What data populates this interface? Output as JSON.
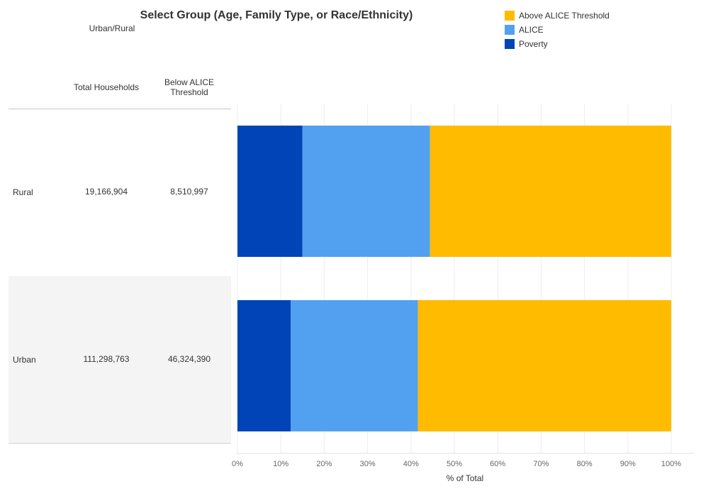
{
  "header": {
    "title": "Select Group (Age, Family Type, or Race/Ethnicity)",
    "dimension_label": "Urban/Rural",
    "columns": {
      "total_households": "Total Households",
      "below_alice": "Below ALICE Threshold"
    }
  },
  "legend": {
    "items": [
      {
        "label": "Above ALICE Threshold",
        "color": "#ffbb00"
      },
      {
        "label": "ALICE",
        "color": "#52a1f0"
      },
      {
        "label": "Poverty",
        "color": "#0044b8"
      }
    ]
  },
  "table": {
    "rows": [
      {
        "label": "Rural",
        "total": "19,166,904",
        "below": "8,510,997"
      },
      {
        "label": "Urban",
        "total": "111,298,763",
        "below": "46,324,390"
      }
    ]
  },
  "chart_data": {
    "type": "bar",
    "orientation": "horizontal",
    "stacked": true,
    "categories": [
      "Rural",
      "Urban"
    ],
    "series": [
      {
        "name": "Poverty",
        "values": [
          15.0,
          12.3
        ],
        "color": "#0044b8"
      },
      {
        "name": "ALICE",
        "values": [
          29.4,
          29.3
        ],
        "color": "#52a1f0"
      },
      {
        "name": "Above ALICE Threshold",
        "values": [
          55.6,
          58.4
        ],
        "color": "#ffbb00"
      }
    ],
    "xlim": [
      0,
      100
    ],
    "xticks": [
      "0%",
      "10%",
      "20%",
      "30%",
      "40%",
      "50%",
      "60%",
      "70%",
      "80%",
      "90%",
      "100%"
    ],
    "xlabel": "% of Total",
    "grid": true
  }
}
